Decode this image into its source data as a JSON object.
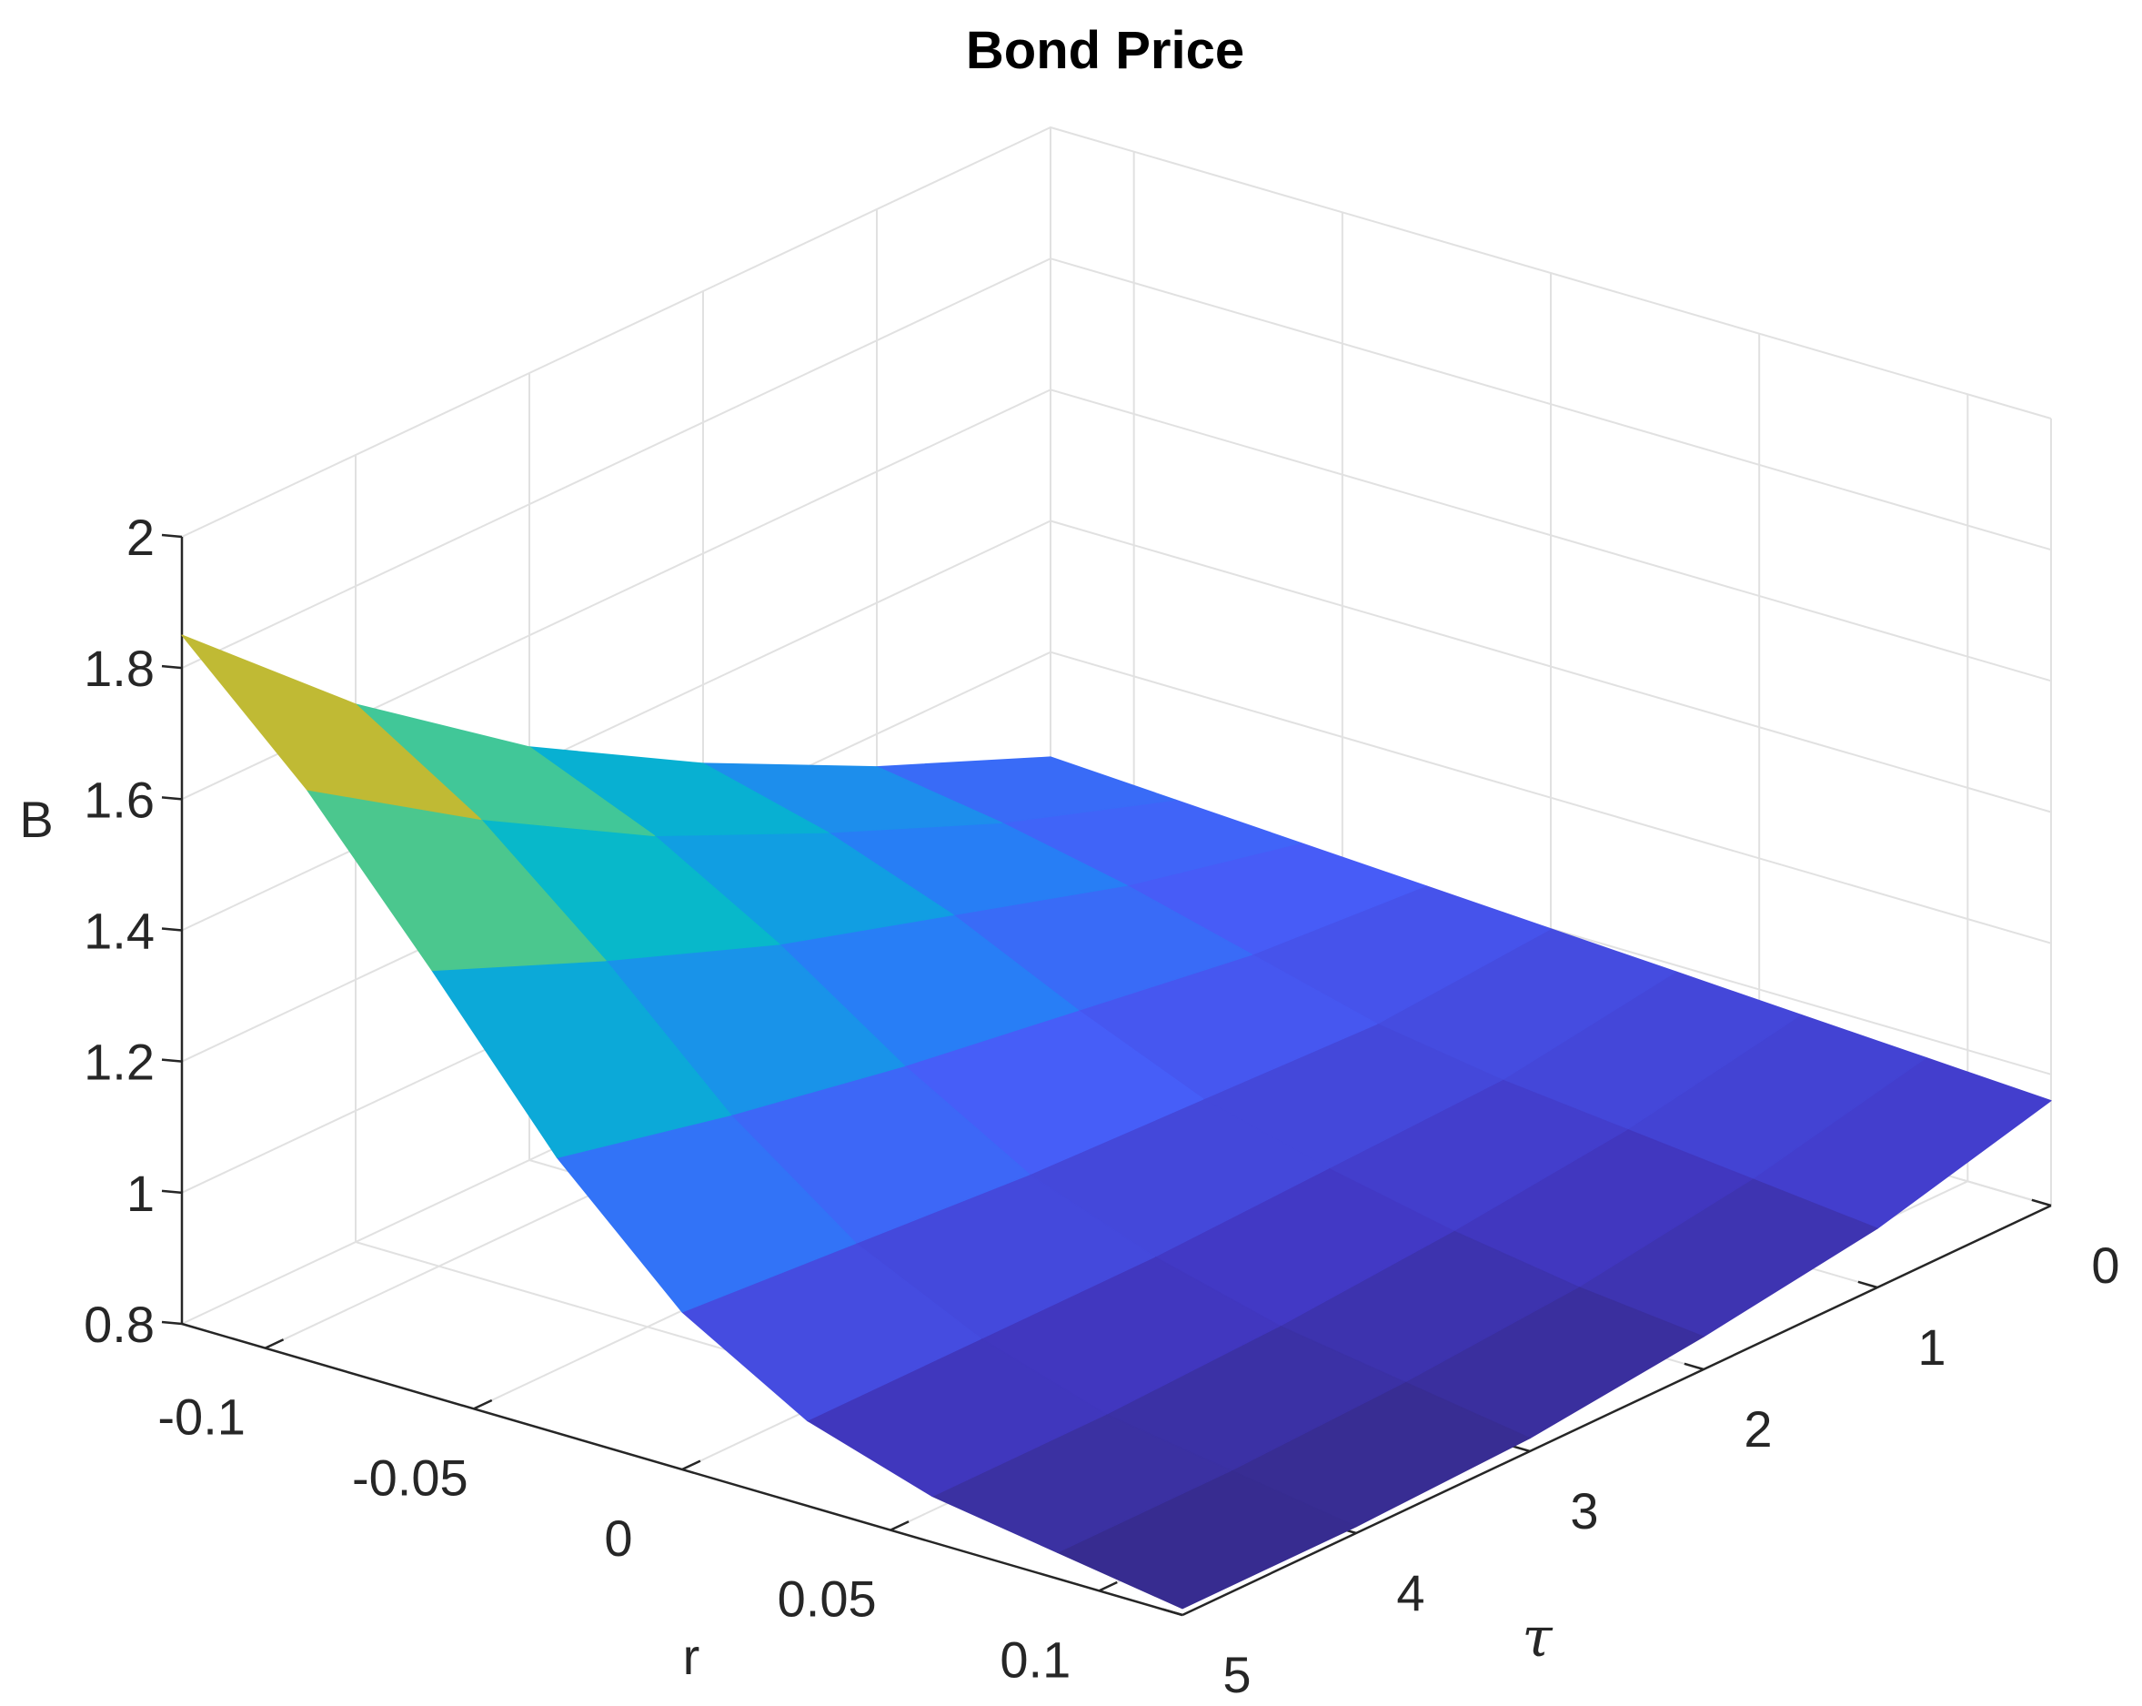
{
  "chart_data": {
    "type": "surface",
    "title": "Bond Price",
    "xlabel": "r",
    "ylabel": "τ",
    "zlabel": "B",
    "xlim": [
      -0.12,
      0.12
    ],
    "ylim": [
      0,
      5
    ],
    "zlim": [
      0.8,
      2
    ],
    "x_ticks": [
      -0.1,
      -0.05,
      0,
      0.05,
      0.1
    ],
    "y_ticks": [
      0,
      1,
      2,
      3,
      4,
      5
    ],
    "z_ticks": [
      0.8,
      1,
      1.2,
      1.4,
      1.6,
      1.8,
      2
    ],
    "x_tick_labels": [
      "-0.1",
      "-0.05",
      "0",
      "0.05",
      "0.1"
    ],
    "y_tick_labels": [
      "0",
      "1",
      "2",
      "3",
      "4",
      "5"
    ],
    "z_tick_labels": [
      "0.8",
      "1",
      "1.2",
      "1.4",
      "1.6",
      "1.8",
      "2"
    ],
    "r": [
      -0.12,
      -0.09,
      -0.06,
      -0.03,
      0,
      0.03,
      0.06,
      0.09,
      0.12
    ],
    "tau": [
      0,
      1,
      2,
      3,
      4,
      5
    ],
    "B": [
      [
        1.04,
        1.03,
        1.02,
        1.01,
        1.0,
        0.99,
        0.98,
        0.97,
        0.96
      ],
      [
        1.15,
        1.12,
        1.08,
        1.03,
        0.98,
        0.95,
        0.93,
        0.91,
        0.89
      ],
      [
        1.28,
        1.23,
        1.16,
        1.07,
        0.99,
        0.94,
        0.9,
        0.87,
        0.85
      ],
      [
        1.43,
        1.35,
        1.24,
        1.11,
        1.0,
        0.93,
        0.88,
        0.85,
        0.82
      ],
      [
        1.62,
        1.5,
        1.34,
        1.16,
        1.02,
        0.93,
        0.87,
        0.84,
        0.81
      ],
      [
        1.85,
        1.67,
        1.45,
        1.22,
        1.04,
        0.93,
        0.87,
        0.84,
        0.81
      ]
    ],
    "colormap": "parula",
    "grid": true
  }
}
